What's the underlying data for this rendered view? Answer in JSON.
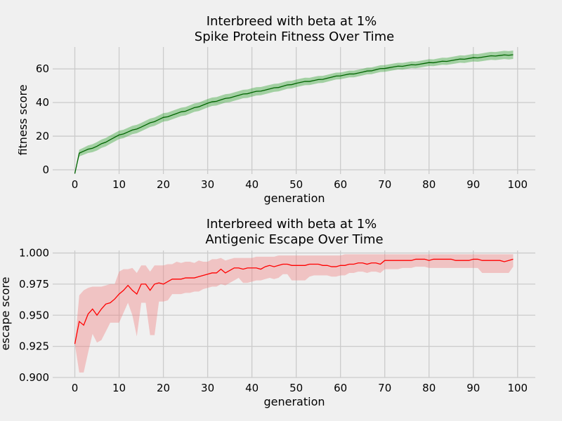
{
  "chart_data": [
    {
      "type": "line",
      "title": "Interbreed with beta at 1%",
      "subtitle": "Spike Protein Fitness Over Time",
      "xlabel": "generation",
      "ylabel": "fitness score",
      "xlim": [
        -5,
        104
      ],
      "ylim": [
        -2.5,
        73
      ],
      "xticks": [
        0,
        10,
        20,
        30,
        40,
        50,
        60,
        70,
        80,
        90,
        100
      ],
      "yticks": [
        0,
        20,
        40,
        60
      ],
      "grid": true,
      "legend": "none",
      "line_color": "#006400",
      "band_color": "#2ca02c",
      "x_start": 0,
      "x_end": 99,
      "mean_anchors": [
        [
          0,
          -2
        ],
        [
          1,
          10
        ],
        [
          3,
          12
        ],
        [
          5,
          14
        ],
        [
          8,
          18
        ],
        [
          10,
          20.5
        ],
        [
          12,
          22.5
        ],
        [
          15,
          25.5
        ],
        [
          20,
          31
        ],
        [
          25,
          35
        ],
        [
          30,
          39.5
        ],
        [
          35,
          43
        ],
        [
          40,
          46
        ],
        [
          45,
          48.5
        ],
        [
          50,
          51.5
        ],
        [
          55,
          53.5
        ],
        [
          60,
          56
        ],
        [
          65,
          58
        ],
        [
          70,
          60.5
        ],
        [
          75,
          62
        ],
        [
          80,
          63.5
        ],
        [
          85,
          65
        ],
        [
          90,
          66.5
        ],
        [
          95,
          67.8
        ],
        [
          99,
          68.5
        ]
      ],
      "band_halfwidth_anchors": [
        [
          0,
          0
        ],
        [
          1,
          2
        ],
        [
          5,
          2.5
        ],
        [
          20,
          2.5
        ],
        [
          40,
          2.5
        ],
        [
          60,
          2
        ],
        [
          80,
          2
        ],
        [
          99,
          2.5
        ]
      ]
    },
    {
      "type": "line",
      "title": "Interbreed with beta at 1%",
      "subtitle": "Antigenic Escape Over Time",
      "xlabel": "generation",
      "ylabel": "escape score",
      "xlim": [
        -5,
        104
      ],
      "ylim": [
        0.9,
        1.002
      ],
      "xticks": [
        0,
        10,
        20,
        30,
        40,
        50,
        60,
        70,
        80,
        90,
        100
      ],
      "yticks": [
        0.9,
        0.925,
        0.95,
        0.975,
        1.0
      ],
      "ytick_labels": [
        "0.900",
        "0.925",
        "0.950",
        "0.975",
        "1.000"
      ],
      "grid": true,
      "legend": "none",
      "line_color": "#ff0000",
      "band_color": "#f08080",
      "x": [
        0,
        1,
        2,
        3,
        4,
        5,
        6,
        7,
        8,
        9,
        10,
        11,
        12,
        13,
        14,
        15,
        16,
        17,
        18,
        19,
        20,
        21,
        22,
        23,
        24,
        25,
        26,
        27,
        28,
        29,
        30,
        31,
        32,
        33,
        34,
        35,
        36,
        37,
        38,
        39,
        40,
        41,
        42,
        43,
        44,
        45,
        46,
        47,
        48,
        49,
        50,
        51,
        52,
        53,
        54,
        55,
        56,
        57,
        58,
        59,
        60,
        61,
        62,
        63,
        64,
        65,
        66,
        67,
        68,
        69,
        70,
        71,
        72,
        73,
        74,
        75,
        76,
        77,
        78,
        79,
        80,
        81,
        82,
        83,
        84,
        85,
        86,
        87,
        88,
        89,
        90,
        91,
        92,
        93,
        94,
        95,
        96,
        97,
        98,
        99
      ],
      "mean": [
        0.927,
        0.945,
        0.942,
        0.951,
        0.955,
        0.95,
        0.955,
        0.959,
        0.96,
        0.963,
        0.967,
        0.97,
        0.974,
        0.97,
        0.967,
        0.975,
        0.975,
        0.97,
        0.975,
        0.976,
        0.975,
        0.977,
        0.979,
        0.979,
        0.979,
        0.98,
        0.98,
        0.98,
        0.981,
        0.982,
        0.983,
        0.984,
        0.984,
        0.987,
        0.984,
        0.986,
        0.988,
        0.988,
        0.987,
        0.988,
        0.988,
        0.988,
        0.987,
        0.989,
        0.99,
        0.989,
        0.99,
        0.991,
        0.991,
        0.99,
        0.99,
        0.99,
        0.99,
        0.991,
        0.991,
        0.991,
        0.99,
        0.99,
        0.989,
        0.989,
        0.99,
        0.99,
        0.991,
        0.991,
        0.992,
        0.992,
        0.991,
        0.992,
        0.992,
        0.991,
        0.994,
        0.994,
        0.994,
        0.994,
        0.994,
        0.994,
        0.994,
        0.995,
        0.995,
        0.995,
        0.994,
        0.995,
        0.995,
        0.995,
        0.995,
        0.995,
        0.994,
        0.994,
        0.994,
        0.994,
        0.995,
        0.995,
        0.994,
        0.994,
        0.994,
        0.994,
        0.994,
        0.993,
        0.994,
        0.995
      ],
      "upper": [
        0.927,
        0.966,
        0.97,
        0.972,
        0.973,
        0.973,
        0.973,
        0.974,
        0.975,
        0.975,
        0.985,
        0.987,
        0.987,
        0.988,
        0.984,
        0.99,
        0.99,
        0.985,
        0.99,
        0.99,
        0.99,
        0.991,
        0.991,
        0.993,
        0.992,
        0.993,
        0.993,
        0.992,
        0.994,
        0.993,
        0.993,
        0.995,
        0.995,
        0.996,
        0.994,
        0.995,
        0.996,
        0.996,
        0.996,
        0.996,
        0.996,
        0.997,
        0.997,
        0.997,
        0.997,
        0.997,
        0.998,
        0.998,
        0.998,
        0.998,
        0.998,
        0.998,
        0.998,
        0.998,
        0.998,
        0.998,
        0.998,
        0.998,
        0.998,
        0.998,
        0.998,
        0.999,
        0.999,
        0.999,
        0.999,
        0.999,
        0.999,
        0.999,
        0.999,
        0.999,
        0.999,
        0.999,
        0.999,
        0.999,
        0.999,
        0.999,
        0.999,
        0.999,
        0.999,
        0.999,
        0.999,
        0.999,
        0.999,
        0.999,
        0.999,
        0.999,
        0.999,
        0.999,
        0.999,
        0.999,
        0.999,
        0.999,
        0.999,
        0.999,
        0.999,
        0.999,
        0.999,
        0.999,
        0.999,
        0.999
      ],
      "lower": [
        0.927,
        0.904,
        0.904,
        0.92,
        0.935,
        0.928,
        0.93,
        0.937,
        0.944,
        0.944,
        0.944,
        0.952,
        0.96,
        0.95,
        0.933,
        0.96,
        0.96,
        0.934,
        0.934,
        0.961,
        0.961,
        0.962,
        0.967,
        0.967,
        0.967,
        0.968,
        0.968,
        0.969,
        0.969,
        0.971,
        0.972,
        0.973,
        0.973,
        0.975,
        0.974,
        0.976,
        0.978,
        0.98,
        0.976,
        0.976,
        0.977,
        0.978,
        0.978,
        0.979,
        0.98,
        0.979,
        0.98,
        0.983,
        0.983,
        0.978,
        0.978,
        0.978,
        0.978,
        0.981,
        0.982,
        0.982,
        0.982,
        0.982,
        0.981,
        0.981,
        0.982,
        0.982,
        0.984,
        0.984,
        0.985,
        0.985,
        0.984,
        0.985,
        0.985,
        0.984,
        0.987,
        0.987,
        0.987,
        0.987,
        0.988,
        0.988,
        0.988,
        0.989,
        0.989,
        0.989,
        0.988,
        0.988,
        0.988,
        0.988,
        0.988,
        0.988,
        0.988,
        0.988,
        0.988,
        0.988,
        0.988,
        0.988,
        0.984,
        0.984,
        0.984,
        0.984,
        0.984,
        0.984,
        0.984,
        0.989
      ]
    }
  ]
}
